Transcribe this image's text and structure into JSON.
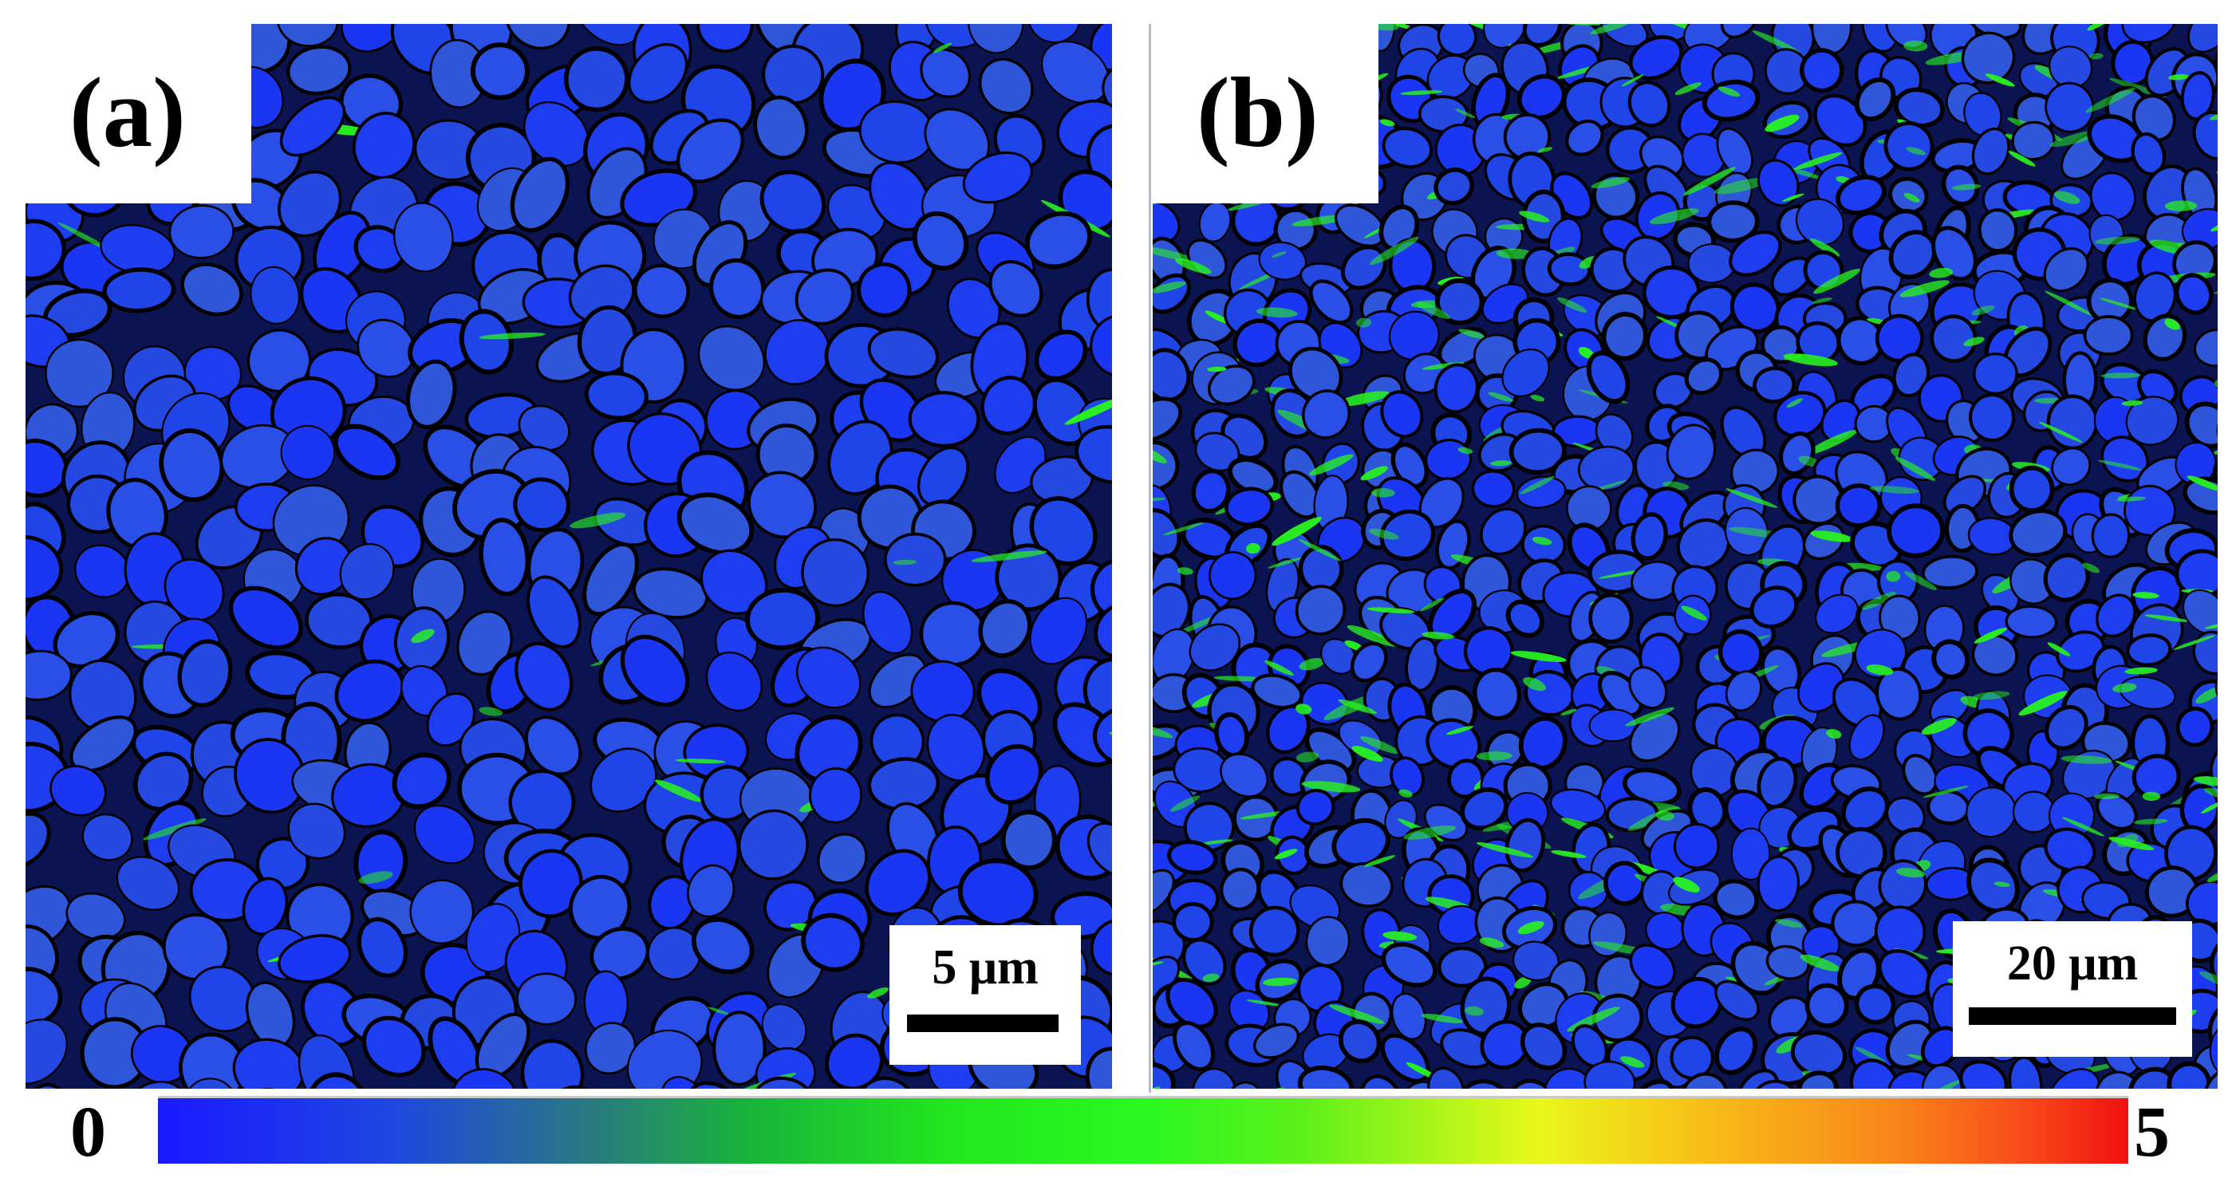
{
  "panel_a": {
    "label": "(a)",
    "scale_bar_text": "5 μm"
  },
  "panel_b": {
    "label": "(b)",
    "scale_bar_text": "20 μm"
  },
  "colorbar": {
    "min_label": "0",
    "max_label": "5"
  },
  "colors": {
    "grain_blue": "#1e3cf0",
    "boundary_black": "#000000",
    "strain_green": "#28f020",
    "background": "#ffffff"
  }
}
